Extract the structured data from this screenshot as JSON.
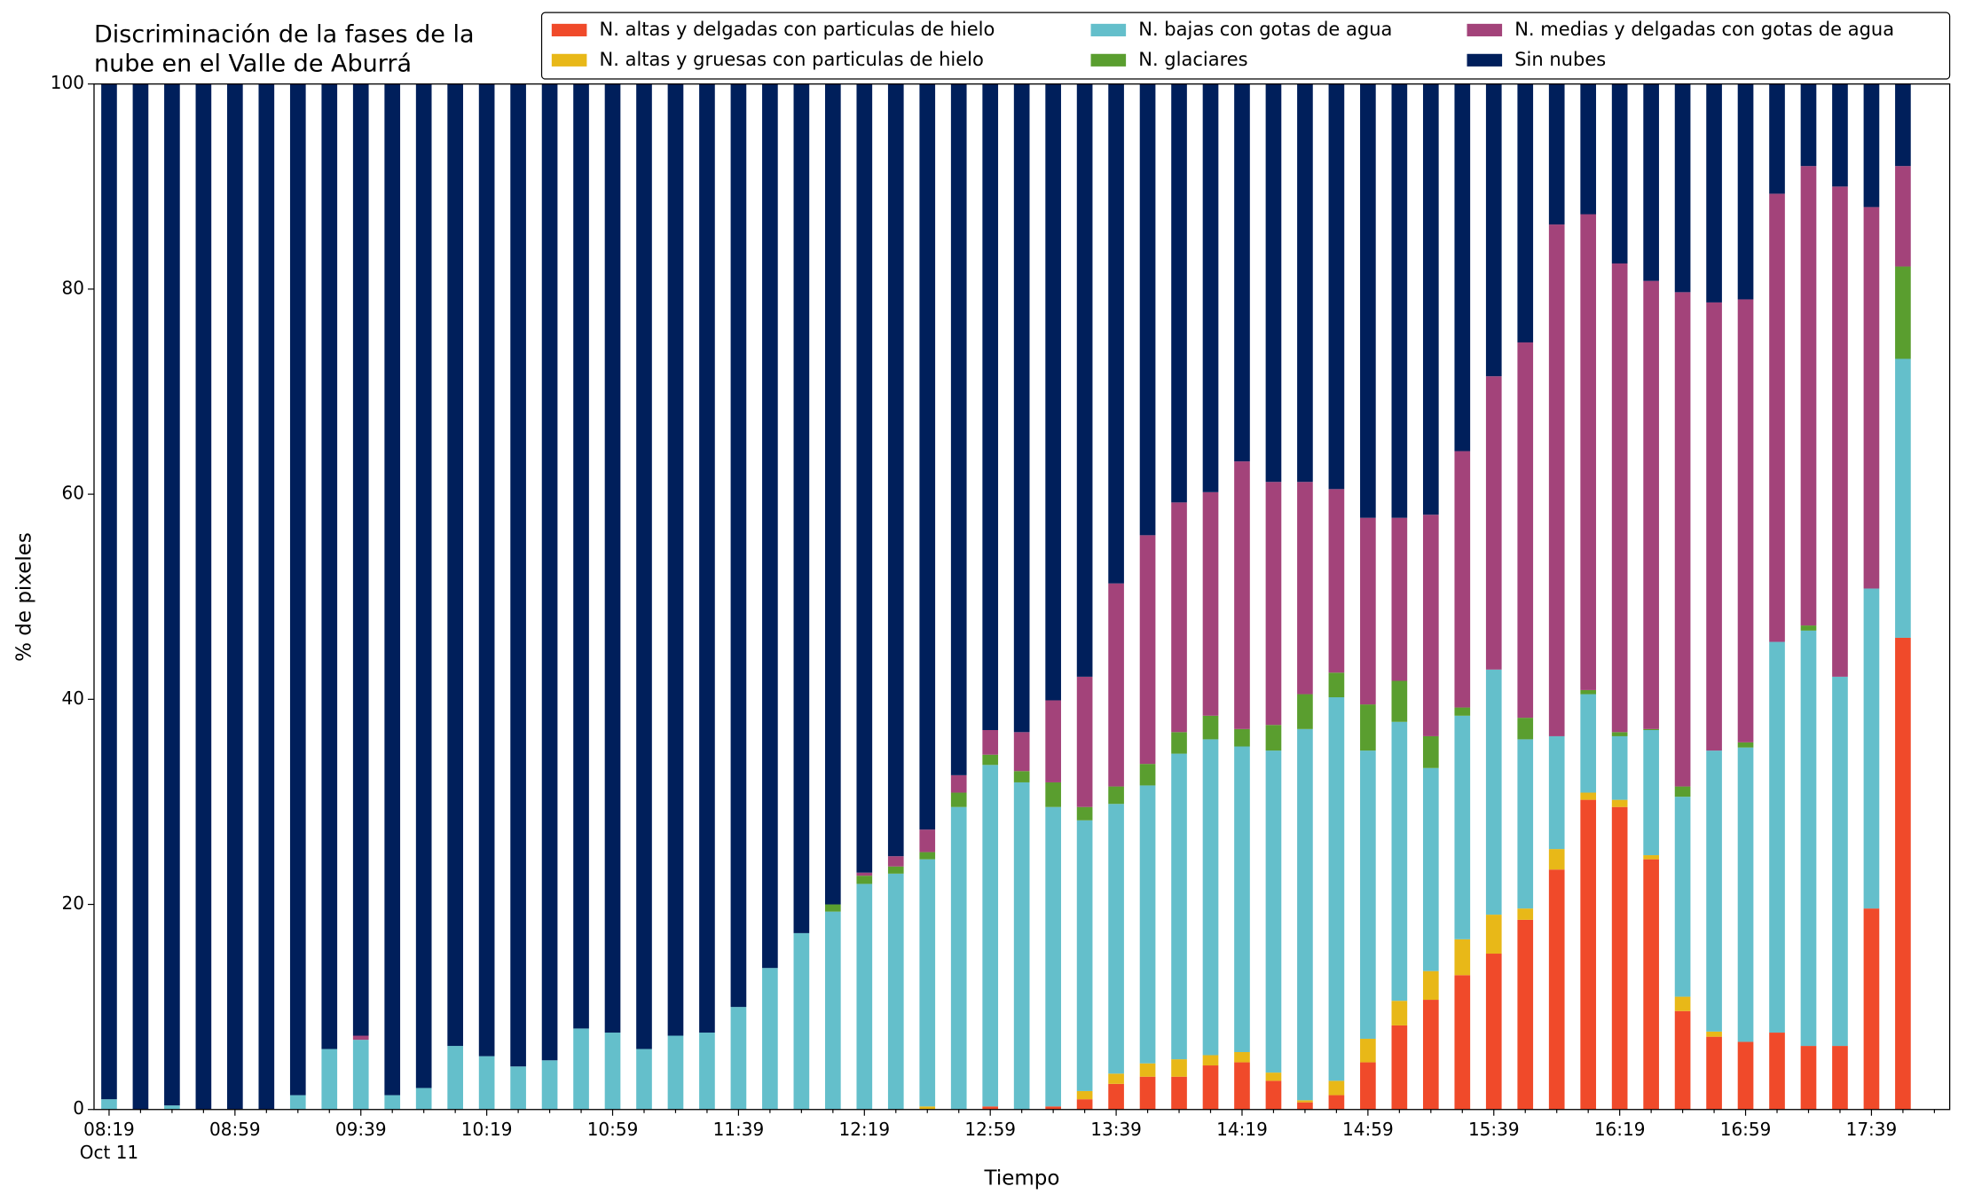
{
  "chart_data": {
    "type": "stacked_bar",
    "title_lines": [
      "Discriminación de la fases de la",
      "nube en el Valle de Aburrá"
    ],
    "xlabel": "Tiempo",
    "ylabel": "% de pixeles",
    "date_label": "Oct 11",
    "categories": [
      "08:19",
      null,
      null,
      null,
      "08:59",
      null,
      null,
      null,
      "09:39",
      null,
      null,
      null,
      "10:19",
      null,
      null,
      null,
      "10:59",
      null,
      null,
      null,
      "11:39",
      null,
      null,
      null,
      "12:19",
      null,
      null,
      null,
      "12:59",
      null,
      null,
      null,
      "13:39",
      null,
      null,
      null,
      "14:19",
      null,
      null,
      null,
      "14:59",
      null,
      null,
      null,
      "15:39",
      null,
      null,
      null,
      "16:19",
      null,
      null,
      null,
      "16:59",
      null,
      null,
      null,
      "17:39",
      null
    ],
    "ylim": [
      0,
      100
    ],
    "yticks": [
      0,
      20,
      40,
      60,
      80,
      100
    ],
    "series": [
      {
        "name": "N. altas y delgadas con particulas de hielo",
        "color": "#f04a2a",
        "values": [
          0,
          0,
          0,
          0,
          0,
          0,
          0,
          0,
          0,
          0,
          0,
          0,
          0,
          0,
          0,
          0,
          0,
          0,
          0,
          0,
          0,
          0,
          0,
          0,
          0,
          0,
          0,
          0,
          0.3,
          0,
          0.3,
          1.0,
          2.5,
          3.2,
          3.2,
          4.3,
          4.6,
          2.8,
          0.7,
          1.4,
          4.6,
          8.2,
          10.7,
          13.1,
          15.2,
          18.5,
          23.4,
          30.2,
          29.5,
          24.4,
          9.6,
          7.1,
          6.6,
          7.5,
          6.2,
          6.2,
          19.6,
          46.0
        ]
      },
      {
        "name": "N. altas y gruesas con particulas de hielo",
        "color": "#e8b818",
        "values": [
          0,
          0,
          0,
          0,
          0,
          0,
          0,
          0,
          0,
          0,
          0,
          0,
          0,
          0,
          0,
          0,
          0,
          0,
          0,
          0,
          0,
          0,
          0,
          0,
          0,
          0,
          0.3,
          0,
          0,
          0,
          0,
          0.8,
          1.0,
          1.3,
          1.7,
          1.0,
          1.0,
          0.8,
          0.2,
          1.4,
          2.3,
          2.4,
          2.8,
          3.5,
          3.8,
          1.1,
          2.0,
          0.7,
          0.7,
          0.4,
          1.4,
          0.5,
          0,
          0,
          0,
          0,
          0,
          0
        ]
      },
      {
        "name": "N. bajas con gotas de agua",
        "color": "#64bfcb",
        "values": [
          1.0,
          0,
          0.4,
          0,
          0,
          0,
          1.4,
          5.9,
          6.8,
          1.4,
          2.1,
          6.2,
          5.2,
          4.2,
          4.8,
          7.9,
          7.5,
          5.9,
          7.2,
          7.5,
          10.0,
          13.8,
          17.2,
          19.3,
          22.0,
          23.0,
          24.1,
          29.5,
          33.3,
          31.9,
          29.2,
          26.4,
          26.3,
          27.1,
          29.8,
          30.8,
          29.8,
          31.4,
          36.2,
          37.4,
          28.1,
          27.2,
          19.8,
          21.8,
          23.9,
          16.5,
          11.0,
          9.6,
          6.2,
          12.2,
          19.5,
          27.4,
          28.7,
          38.1,
          40.5,
          36.0,
          31.2,
          27.2
        ]
      },
      {
        "name": "N. glaciares",
        "color": "#5a9e2f",
        "values": [
          0,
          0,
          0,
          0,
          0,
          0,
          0,
          0,
          0,
          0,
          0,
          0,
          0,
          0,
          0,
          0,
          0,
          0,
          0,
          0,
          0,
          0,
          0,
          0.7,
          0.8,
          0.7,
          0.7,
          1.4,
          1.0,
          1.1,
          2.4,
          1.3,
          1.7,
          2.1,
          2.1,
          2.3,
          1.7,
          2.5,
          3.4,
          2.4,
          4.5,
          4.0,
          3.1,
          0.8,
          0,
          2.1,
          0,
          0.4,
          0.4,
          0.1,
          1.0,
          0,
          0.5,
          0,
          0.5,
          0,
          0,
          9.0
        ]
      },
      {
        "name": "N. medias y delgadas con gotas de agua",
        "color": "#a3437a",
        "values": [
          0,
          0,
          0,
          0,
          0,
          0,
          0,
          0,
          0.4,
          0,
          0,
          0,
          0,
          0,
          0,
          0,
          0,
          0,
          0,
          0,
          0,
          0,
          0,
          0,
          0.3,
          1.0,
          2.2,
          1.7,
          2.4,
          3.8,
          8.0,
          12.7,
          19.8,
          22.3,
          22.4,
          21.8,
          26.1,
          23.7,
          20.7,
          17.9,
          18.2,
          15.9,
          21.6,
          25.0,
          28.6,
          36.6,
          49.9,
          46.4,
          45.7,
          43.7,
          48.2,
          43.7,
          43.2,
          43.7,
          44.8,
          47.8,
          37.2,
          9.8
        ]
      },
      {
        "name": "Sin nubes",
        "color": "#001f5b",
        "values": [
          99.0,
          100,
          99.6,
          100,
          100,
          100,
          98.6,
          94.1,
          92.8,
          98.6,
          97.9,
          93.8,
          94.8,
          95.8,
          95.2,
          92.1,
          92.5,
          94.1,
          92.8,
          92.5,
          90.0,
          86.2,
          82.8,
          80.0,
          76.9,
          75.3,
          72.7,
          67.4,
          63.0,
          63.2,
          60.1,
          57.8,
          48.7,
          44.0,
          40.8,
          39.8,
          36.8,
          38.8,
          38.8,
          39.5,
          42.3,
          42.3,
          42.0,
          35.8,
          28.5,
          25.2,
          13.7,
          12.7,
          17.5,
          19.2,
          20.3,
          21.3,
          21.0,
          10.7,
          8.0,
          10.0,
          12.0,
          8.0
        ]
      }
    ]
  }
}
